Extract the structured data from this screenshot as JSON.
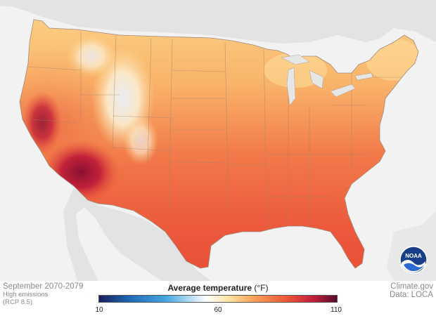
{
  "map": {
    "region": "Contiguous United States"
  },
  "caption": {
    "period": "September 2070-2079",
    "scenario_line1": "High emissions",
    "scenario_line2": "(RCP 8.5)"
  },
  "credits": {
    "source": "Climate.gov",
    "data": "Data: LOCA"
  },
  "legend": {
    "title": "Average temperature",
    "unit": "(°F)",
    "min_label": "10",
    "mid_label": "60",
    "max_label": "110",
    "range": [
      10,
      110
    ],
    "colors": [
      "#1a1f5c",
      "#1d64b0",
      "#44a6e0",
      "#ffffff",
      "#fde2a0",
      "#f7a35a",
      "#ef5a3a",
      "#c21f3a",
      "#5a0a2a"
    ]
  },
  "logo": {
    "text": "NOAA"
  }
}
